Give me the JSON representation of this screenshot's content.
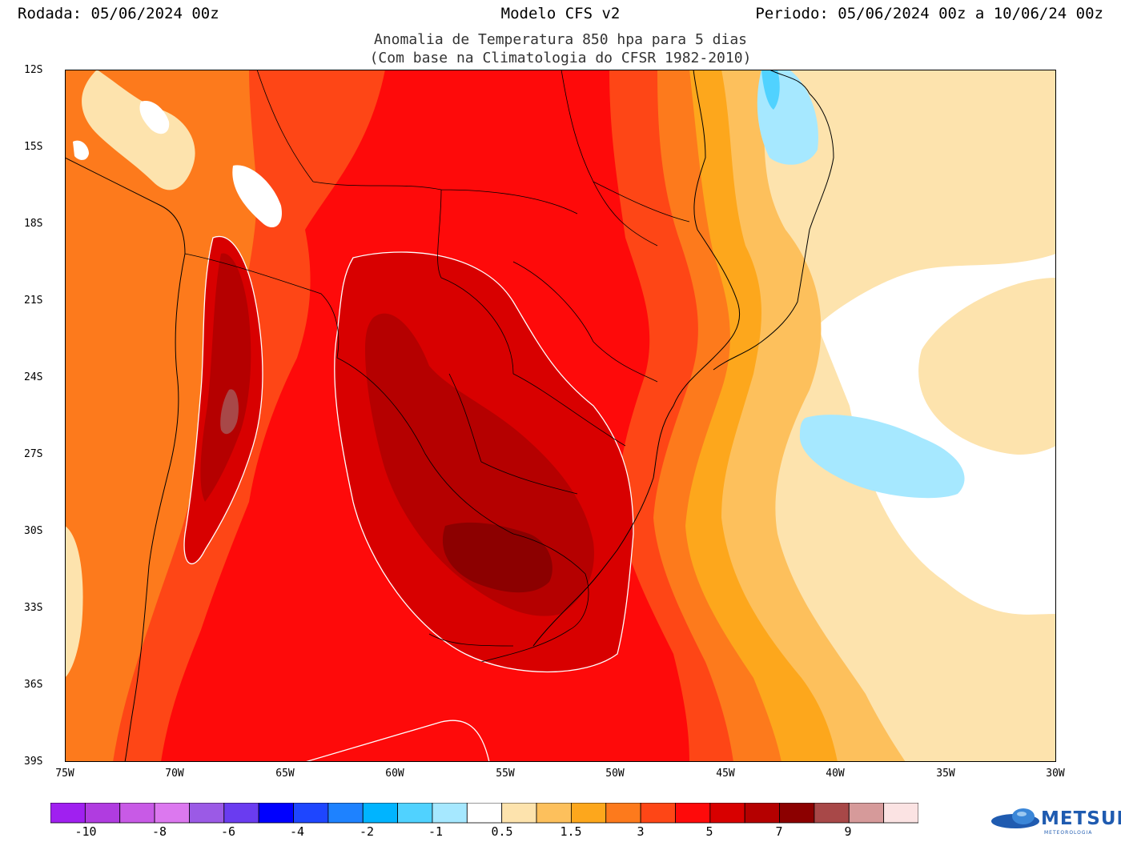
{
  "header": {
    "run": "Rodada: 05/06/2024 00z",
    "model": "Modelo CFS v2",
    "period": "Periodo: 05/06/2024 00z a 10/06/24 00z",
    "subtitle_1": "Anomalia de Temperatura 850 hpa para 5 dias",
    "subtitle_2": "(Com base na Climatologia do CFSR 1982-2010)"
  },
  "map": {
    "lat_labels": [
      "12S",
      "15S",
      "18S",
      "21S",
      "24S",
      "27S",
      "30S",
      "33S",
      "36S",
      "39S"
    ],
    "lon_labels": [
      "75W",
      "70W",
      "65W",
      "60W",
      "55W",
      "50W",
      "45W",
      "40W",
      "35W",
      "30W"
    ],
    "lat_range": [
      -39,
      -12
    ],
    "lon_range": [
      -75,
      -30
    ],
    "variable": "850 hPa temperature anomaly"
  },
  "legend": {
    "colors": [
      "#a020f0",
      "#b03ce0",
      "#c85ae6",
      "#dc78ef",
      "#9b5ae6",
      "#6a3cf0",
      "#0000ff",
      "#1e46ff",
      "#1e82ff",
      "#00b4ff",
      "#50d2ff",
      "#a6e8ff",
      "#ffffff",
      "#fde3ad",
      "#fdc05c",
      "#fda71c",
      "#fd7a1c",
      "#fe4616",
      "#fe0a0a",
      "#d80000",
      "#b50000",
      "#8c0000",
      "#a84848",
      "#d69a9a",
      "#fbe3e3"
    ],
    "labels": [
      "-10",
      "-8",
      "-6",
      "-4",
      "-2",
      "-1",
      "0.5",
      "1.5",
      "3",
      "5",
      "7",
      "9"
    ]
  },
  "logo": {
    "name": "METSUL",
    "tagline": "METEOROLOGIA"
  }
}
